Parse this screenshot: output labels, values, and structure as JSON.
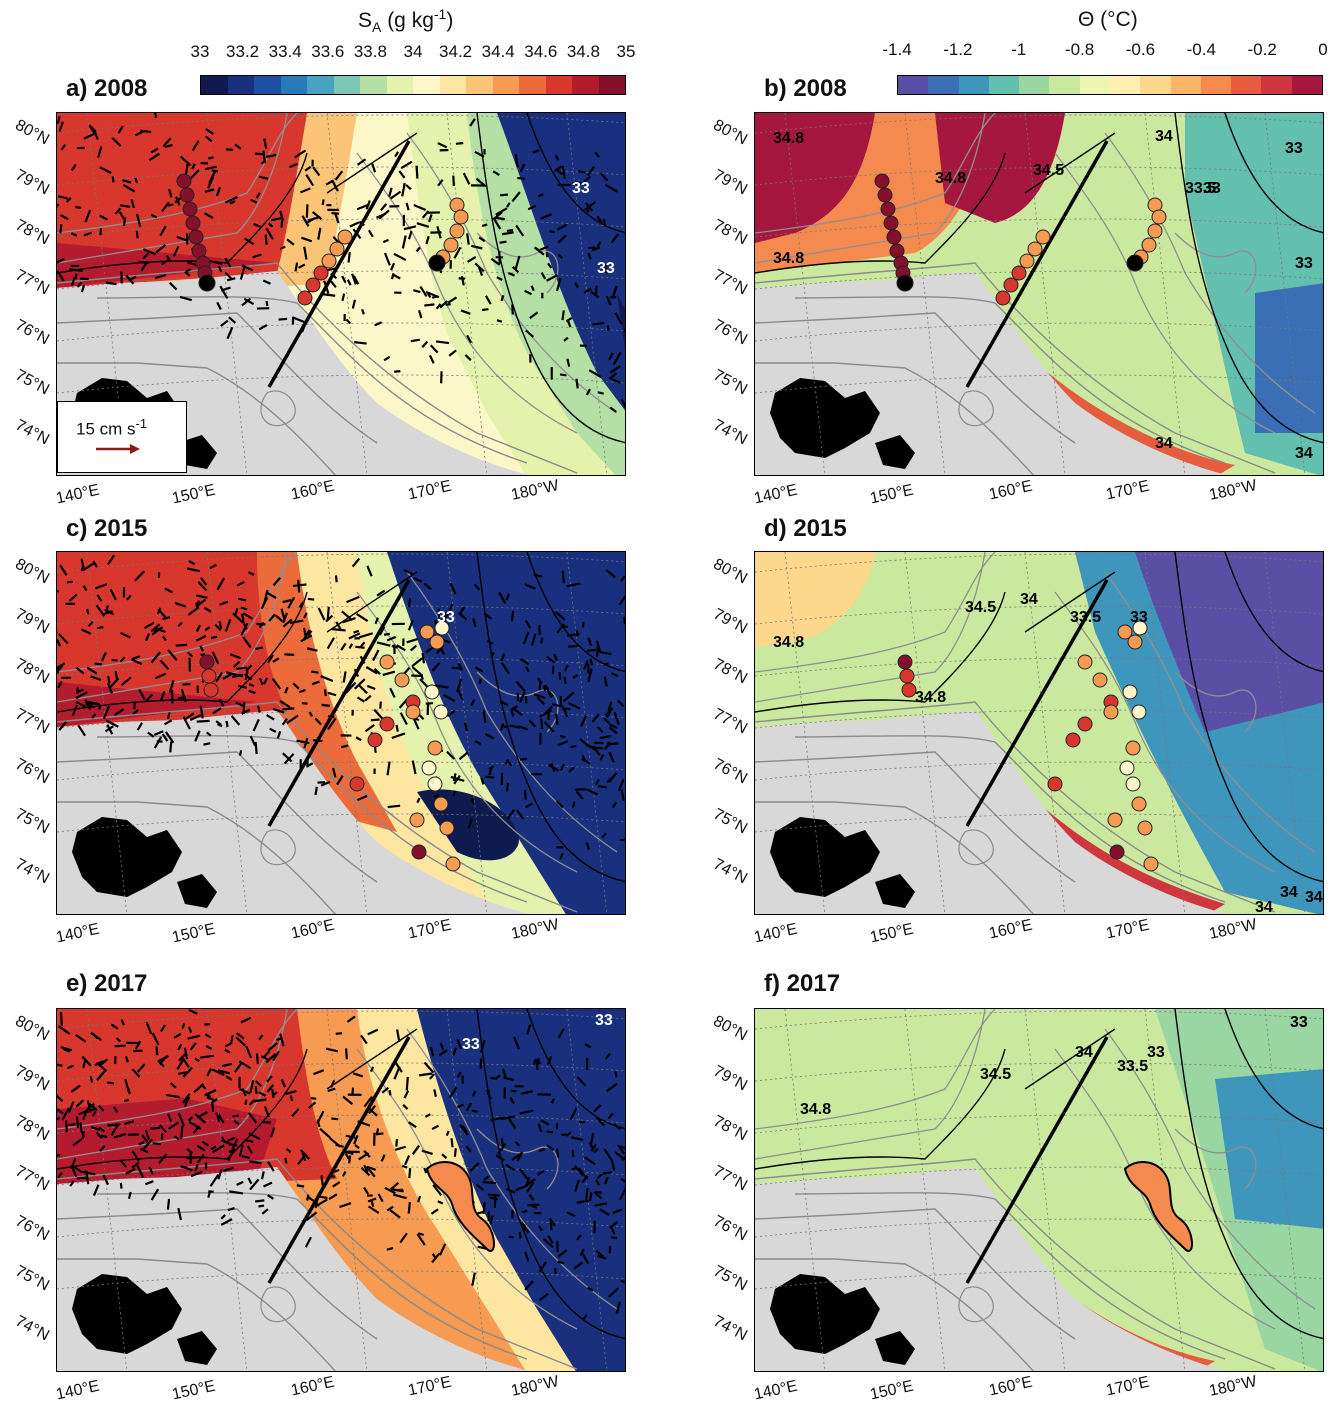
{
  "colorbars": {
    "salinity": {
      "title": "S_A (g kg-1)",
      "title_main": "S",
      "title_sub": "A",
      "title_units": " (g kg",
      "title_sup": "-1",
      "title_end": ")",
      "ticks": [
        "33",
        "33.2",
        "33.4",
        "33.6",
        "33.8",
        "34",
        "34.2",
        "34.4",
        "34.6",
        "34.8",
        "35"
      ],
      "colors": [
        "#0d1b4f",
        "#18307e",
        "#1f4fa0",
        "#2a79b8",
        "#49a3c0",
        "#7cc7b6",
        "#b4e0a6",
        "#e4f2ad",
        "#fbf7c8",
        "#fde6a0",
        "#fcc476",
        "#f79a52",
        "#ec6b3b",
        "#d8372e",
        "#b51b2f",
        "#85102c"
      ]
    },
    "temperature": {
      "title": "Θ (°C)",
      "ticks": [
        "-1.4",
        "-1.2",
        "-1",
        "-0.8",
        "-0.6",
        "-0.4",
        "-0.2",
        "0"
      ],
      "colors": [
        "#5b4fa5",
        "#3a6fb6",
        "#3f96bc",
        "#63bfae",
        "#9ad6a2",
        "#cbe89f",
        "#eef5b2",
        "#fdf0b0",
        "#fdd88c",
        "#fbb56b",
        "#f48a4e",
        "#e55c3f",
        "#cf3640",
        "#a5173e"
      ]
    }
  },
  "panels": [
    {
      "id": "a",
      "label": "a) 2008",
      "var": "salinity"
    },
    {
      "id": "b",
      "label": "b) 2008",
      "var": "temperature"
    },
    {
      "id": "c",
      "label": "c) 2015",
      "var": "salinity"
    },
    {
      "id": "d",
      "label": "d) 2015",
      "var": "temperature"
    },
    {
      "id": "e",
      "label": "e) 2017",
      "var": "salinity"
    },
    {
      "id": "f",
      "label": "f) 2017",
      "var": "temperature"
    }
  ],
  "lat_labels": [
    "80°N",
    "79°N",
    "78°N",
    "77°N",
    "76°N",
    "75°N",
    "74°N"
  ],
  "lon_labels": [
    "140°E",
    "150°E",
    "160°E",
    "170°E",
    "180°W"
  ],
  "velocity_legend": {
    "label": "15 cm s",
    "exponent": "-1",
    "arrow_color": "#8b1a1a"
  },
  "contour_labels": {
    "b": [
      "34.8",
      "34.8",
      "34.8",
      "34.5",
      "34",
      "33.5",
      "33",
      "33",
      "34",
      "34",
      "33"
    ],
    "d": [
      "34.8",
      "34.8",
      "34.5",
      "34",
      "33.5",
      "33",
      "34",
      "34",
      "34"
    ],
    "f": [
      "34.8",
      "34.5",
      "34",
      "33.5",
      "33",
      "33"
    ],
    "a": [
      "33",
      "33"
    ],
    "c": [
      "33"
    ],
    "e": [
      "33",
      "33"
    ]
  }
}
